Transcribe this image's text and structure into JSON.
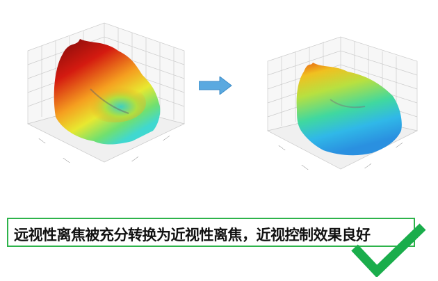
{
  "caption": {
    "text": "远视性离焦被充分转换为近视性离焦，近视控制效果良好"
  },
  "figures": {
    "left": {
      "description_icon": "3d-surface-plot-hyperopic-defocus"
    },
    "right": {
      "description_icon": "3d-surface-plot-myopic-defocus"
    }
  },
  "icons": {
    "arrow": "arrow-right-icon",
    "check": "checkmark-icon"
  },
  "colors": {
    "arrow": "#5aa9e0",
    "check": "#1aad4b",
    "border": "#2db34a"
  }
}
